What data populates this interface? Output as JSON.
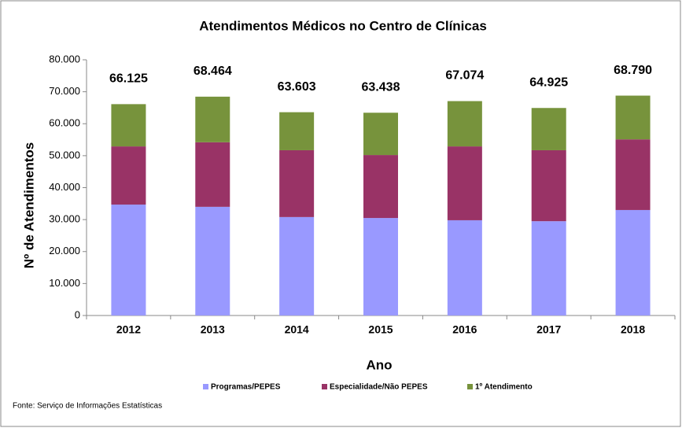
{
  "chart_data": {
    "type": "stacked_bar",
    "title": "Atendimentos  Médicos no Centro de Clínicas",
    "xlabel": "Ano",
    "ylabel": "Nº de Atendimentos",
    "source": "Fonte: Serviço de Informações Estatísticas",
    "categories": [
      "2012",
      "2013",
      "2014",
      "2015",
      "2016",
      "2017",
      "2018"
    ],
    "series": [
      {
        "name": "Programas/PEPES",
        "color": "#9999ff",
        "values": [
          34700,
          34000,
          30800,
          30500,
          29800,
          29500,
          33000
        ]
      },
      {
        "name": "Especialidade/Não PEPES",
        "color": "#993366",
        "values": [
          18200,
          20200,
          20900,
          19700,
          23100,
          22200,
          22100
        ]
      },
      {
        "name": "1º Atendimento",
        "color": "#77933c",
        "values": [
          13225,
          14264,
          11903,
          13238,
          14174,
          13225,
          13690
        ]
      }
    ],
    "totals": {
      "values": [
        66125,
        68464,
        63603,
        63438,
        67074,
        64925,
        68790
      ],
      "value_labels": [
        "66.125",
        "68.464",
        "63.603",
        "63.438",
        "67.074",
        "64.925",
        "68.790"
      ]
    },
    "ylim": [
      0,
      80000
    ],
    "yticks": [
      0,
      {
        "value": 10000,
        "label": "10.000"
      },
      {
        "value": 20000,
        "label": "20.000"
      },
      {
        "value": 30000,
        "label": "30.000"
      },
      {
        "value": 40000,
        "label": "40.000"
      },
      {
        "value": 50000,
        "label": "50.000"
      },
      {
        "value": 60000,
        "label": "60.000"
      },
      {
        "value": 70000,
        "label": "70.000"
      },
      {
        "value": 80000,
        "label": "80.000"
      }
    ],
    "grid": false,
    "legend": "bottom"
  }
}
